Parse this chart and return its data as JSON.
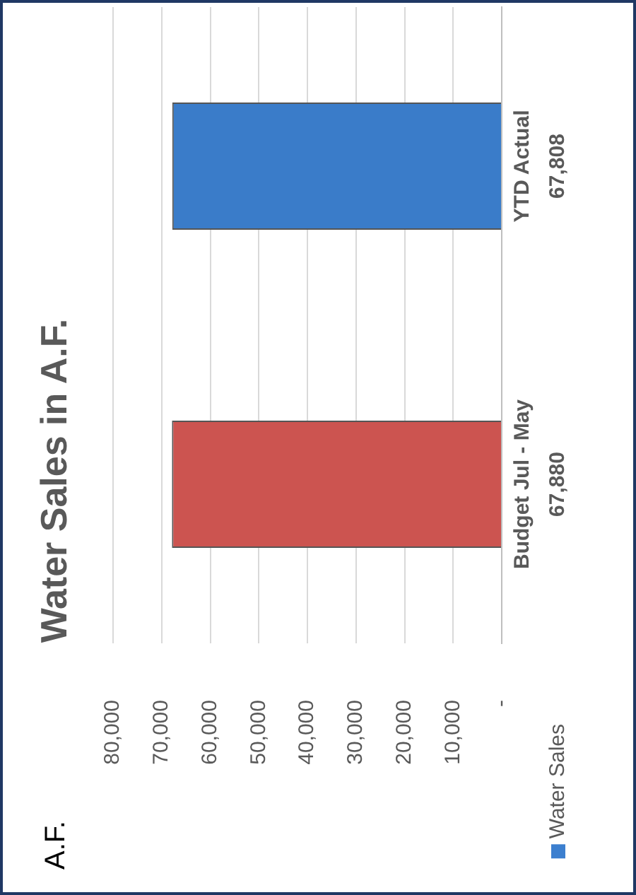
{
  "chart_data": {
    "type": "bar",
    "orientation": "horizontal",
    "title": "Water Sales in A.F.",
    "annotations": [
      "A.F."
    ],
    "categories": [
      "YTD Actual",
      "Budget Jul - May"
    ],
    "series": [
      {
        "name": "Water Sales",
        "color": "#3c7fcf",
        "colors": [
          "#3a7cc9",
          "#cc5450"
        ],
        "values": [
          67808,
          67880
        ],
        "value_labels": [
          "67,808",
          "67,880"
        ]
      }
    ],
    "xlim": [
      80000,
      0
    ],
    "xticks": [
      {
        "value": 0,
        "label": "-"
      },
      {
        "value": 10000,
        "label": "10,000"
      },
      {
        "value": 20000,
        "label": "20,000"
      },
      {
        "value": 30000,
        "label": "30,000"
      },
      {
        "value": 40000,
        "label": "40,000"
      },
      {
        "value": 50000,
        "label": "50,000"
      },
      {
        "value": 60000,
        "label": "60,000"
      },
      {
        "value": 70000,
        "label": "70,000"
      },
      {
        "value": 80000,
        "label": "80,000"
      }
    ],
    "grid": "x",
    "legend": "bottom right"
  }
}
